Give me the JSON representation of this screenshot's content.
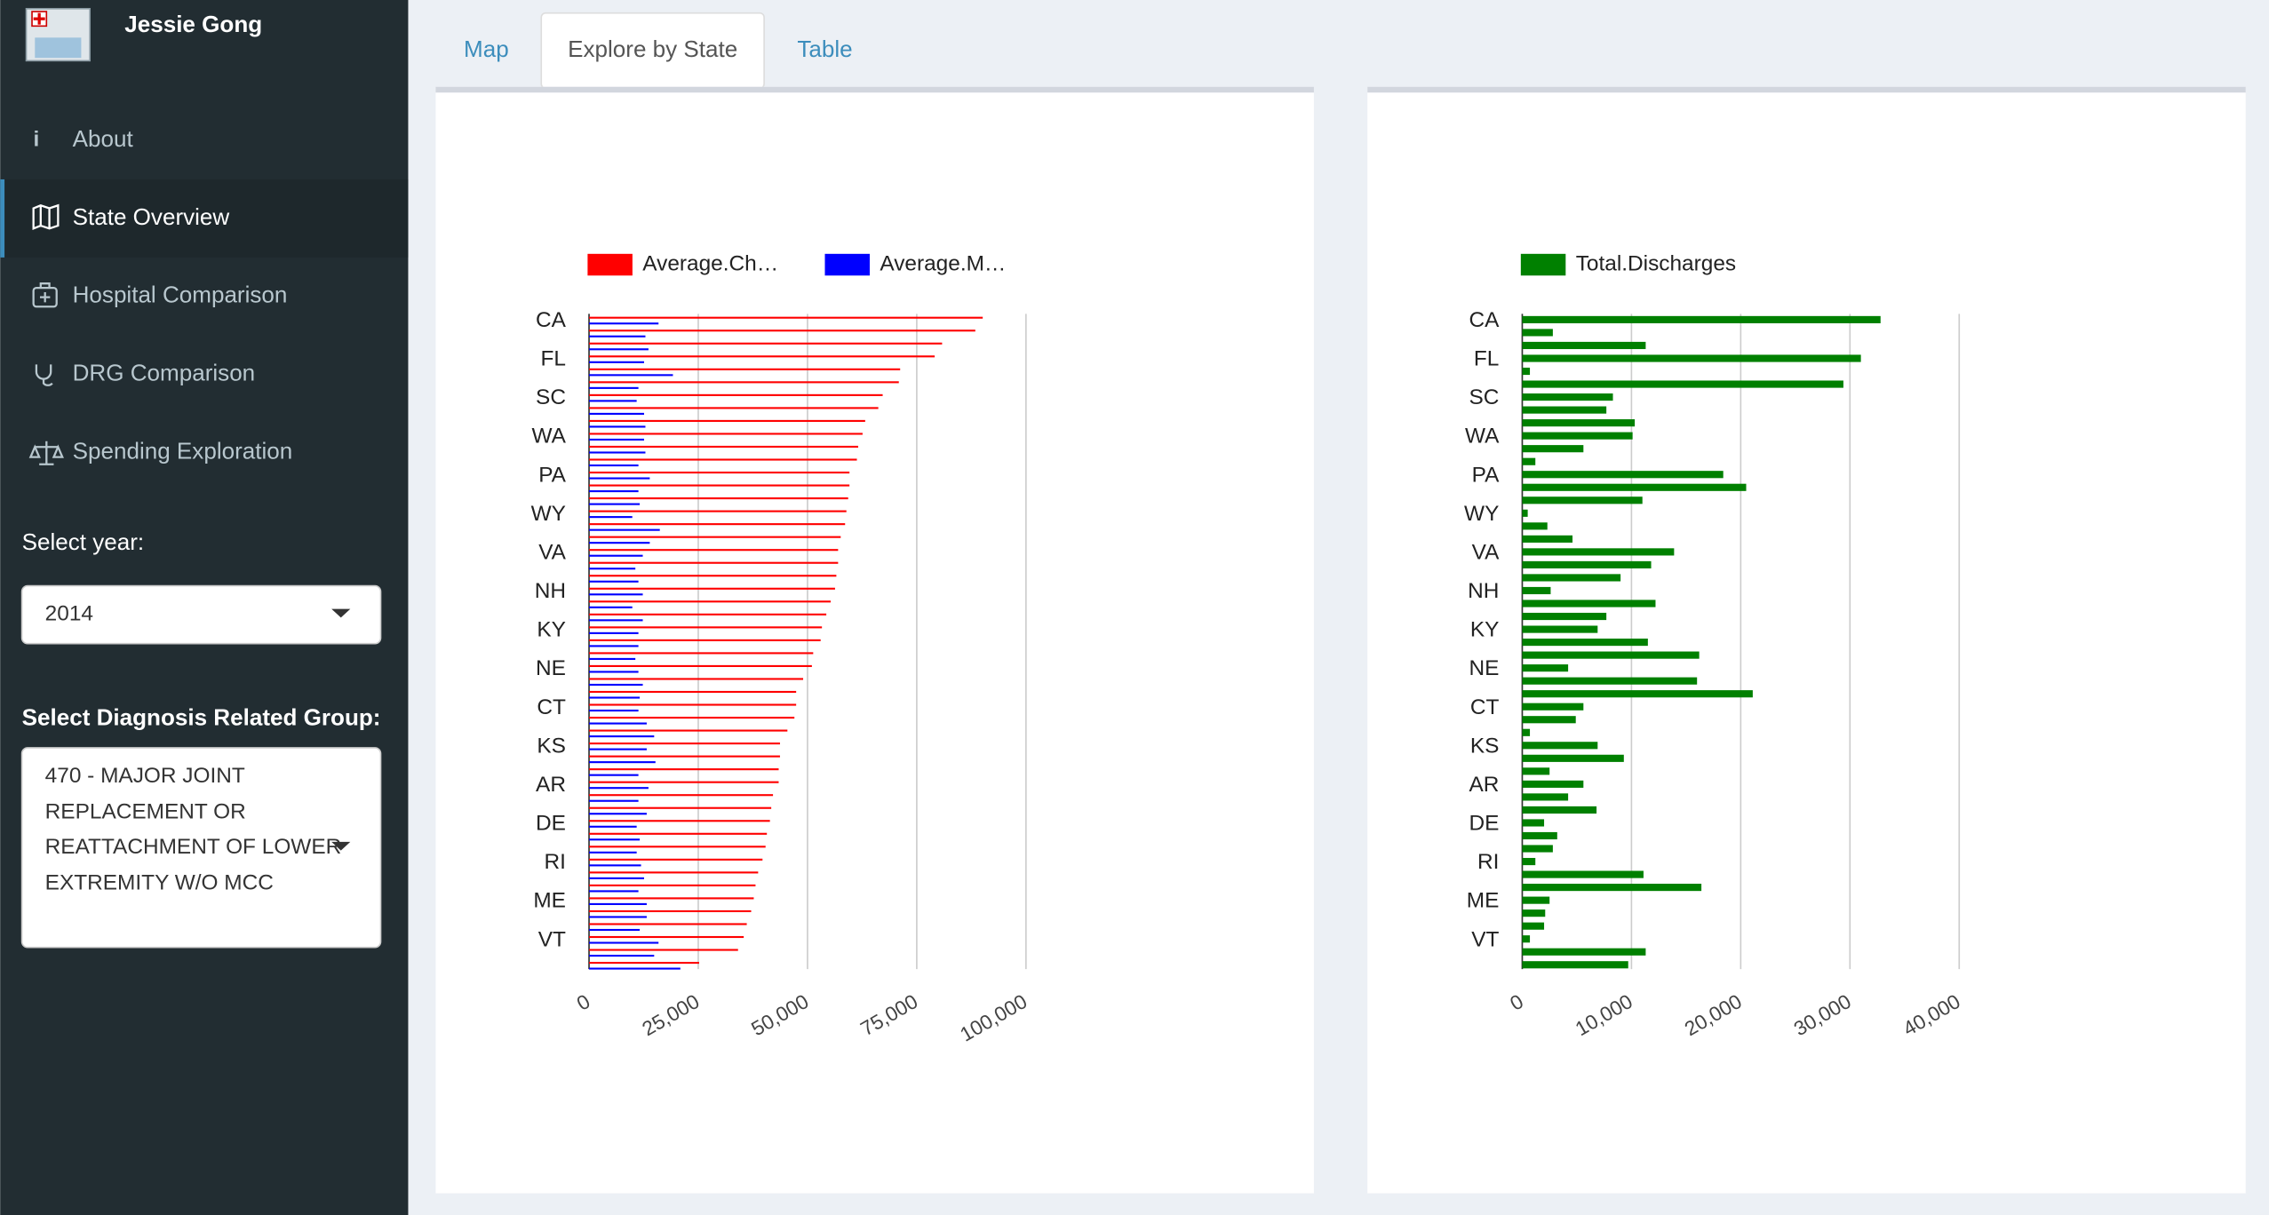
{
  "sidebar": {
    "user": "Jessie Gong",
    "nav": [
      "About",
      "State Overview",
      "Hospital Comparison",
      "DRG Comparison",
      "Spending Exploration"
    ],
    "year_label": "Select year:",
    "year_value": "2014",
    "drg_label": "Select Diagnosis Related Group:",
    "drg_value": [
      "470 - MAJOR JOINT",
      "REPLACEMENT OR",
      "REATTACHMENT OF LOWER",
      "EXTREMITY W/O MCC"
    ]
  },
  "tabs": [
    "Map",
    "Explore by State",
    "Table"
  ],
  "chart_data": [
    {
      "type": "bar",
      "orientation": "horizontal",
      "grid": true,
      "categories": [
        "CA",
        null,
        null,
        "FL",
        null,
        null,
        "SC",
        null,
        null,
        "WA",
        null,
        null,
        "PA",
        null,
        null,
        "WY",
        null,
        null,
        "VA",
        null,
        null,
        "NH",
        null,
        null,
        "KY",
        null,
        null,
        "NE",
        null,
        null,
        "CT",
        null,
        null,
        "KS",
        null,
        null,
        "AR",
        null,
        null,
        "DE",
        null,
        null,
        "RI",
        null,
        null,
        "ME",
        null,
        null,
        "VT",
        null,
        null
      ],
      "series": [
        {
          "name": "Average.Ch…",
          "color": "#ff0000",
          "values": [
            90.1,
            88.4,
            80.8,
            79.1,
            71.2,
            70.9,
            67.2,
            66.2,
            63.2,
            62.6,
            61.6,
            61.3,
            59.6,
            59.6,
            59.3,
            58.9,
            58.6,
            57.6,
            57.0,
            57.0,
            56.6,
            56.3,
            55.3,
            54.3,
            53.3,
            53.0,
            51.3,
            51.0,
            49.0,
            47.4,
            47.4,
            47.0,
            45.4,
            43.7,
            43.7,
            43.4,
            43.4,
            42.1,
            41.7,
            41.4,
            40.7,
            40.4,
            39.7,
            38.7,
            38.1,
            37.7,
            37.1,
            36.1,
            35.4,
            34.1,
            25.2
          ]
        },
        {
          "name": "Average.M…",
          "color": "#0000ff",
          "values": [
            15.9,
            12.9,
            13.6,
            12.6,
            19.2,
            11.3,
            10.9,
            12.6,
            12.9,
            12.6,
            12.9,
            11.3,
            13.9,
            11.3,
            11.6,
            9.9,
            16.2,
            13.9,
            12.3,
            10.6,
            11.3,
            12.3,
            9.9,
            12.3,
            11.3,
            11.3,
            10.6,
            11.3,
            12.3,
            11.6,
            11.3,
            13.2,
            14.9,
            13.2,
            15.2,
            11.3,
            13.6,
            11.3,
            13.2,
            10.9,
            11.6,
            10.9,
            11.9,
            12.6,
            11.3,
            13.2,
            13.2,
            11.6,
            15.9,
            14.9,
            20.9
          ]
        }
      ],
      "value_scale": 1000,
      "xlim": [
        0,
        100000
      ],
      "xticks": [
        0,
        {
          "value": 25000,
          "label": "25,000"
        },
        {
          "value": 50000,
          "label": "50,000"
        },
        {
          "value": 75000,
          "label": "75,000"
        },
        {
          "value": 100000,
          "label": "100,000"
        }
      ]
    },
    {
      "type": "bar",
      "orientation": "horizontal",
      "grid": true,
      "categories": [
        "CA",
        null,
        null,
        "FL",
        null,
        null,
        "SC",
        null,
        null,
        "WA",
        null,
        null,
        "PA",
        null,
        null,
        "WY",
        null,
        null,
        "VA",
        null,
        null,
        "NH",
        null,
        null,
        "KY",
        null,
        null,
        "NE",
        null,
        null,
        "CT",
        null,
        null,
        "KS",
        null,
        null,
        "AR",
        null,
        null,
        "DE",
        null,
        null,
        "RI",
        null,
        null,
        "ME",
        null,
        null,
        "VT",
        null,
        null
      ],
      "series": [
        {
          "name": "Total.Discharges",
          "color": "#008000",
          "values": [
            32.8,
            2.8,
            11.3,
            31.0,
            0.7,
            29.4,
            8.3,
            7.7,
            10.3,
            10.1,
            5.6,
            1.2,
            18.4,
            20.5,
            11.0,
            0.5,
            2.3,
            4.6,
            13.9,
            11.8,
            9.0,
            2.6,
            12.2,
            7.7,
            6.9,
            11.5,
            16.2,
            4.2,
            16.0,
            21.1,
            5.6,
            4.9,
            0.7,
            6.9,
            9.3,
            2.5,
            5.6,
            4.2,
            6.8,
            2.0,
            3.2,
            2.8,
            1.2,
            11.1,
            16.4,
            2.5,
            2.1,
            2.0,
            0.7,
            11.3,
            9.7
          ]
        }
      ],
      "value_scale": 1000,
      "xlim": [
        0,
        40000
      ],
      "xticks": [
        0,
        {
          "value": 10000,
          "label": "10,000"
        },
        {
          "value": 20000,
          "label": "20,000"
        },
        {
          "value": 30000,
          "label": "30,000"
        },
        {
          "value": 40000,
          "label": "40,000"
        }
      ]
    }
  ]
}
